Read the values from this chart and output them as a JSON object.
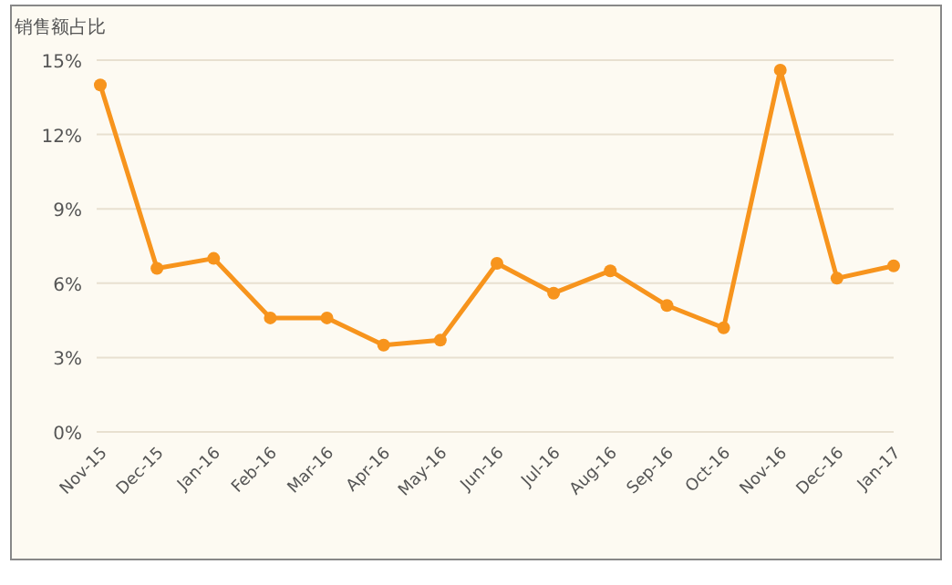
{
  "chart_data": {
    "type": "line",
    "ylabel": "销售额占比",
    "categories": [
      "Nov-15",
      "Dec-15",
      "Jan-16",
      "Feb-16",
      "Mar-16",
      "Apr-16",
      "May-16",
      "Jun-16",
      "Jul-16",
      "Aug-16",
      "Sep-16",
      "Oct-16",
      "Nov-16",
      "Dec-16",
      "Jan-17"
    ],
    "series": [
      {
        "color": "#f7941d",
        "values": [
          14.0,
          6.6,
          7.0,
          4.6,
          4.6,
          3.5,
          3.7,
          6.8,
          5.6,
          6.5,
          5.1,
          4.2,
          14.6,
          6.2,
          6.7
        ]
      }
    ],
    "ylim": [
      0,
      15
    ],
    "yticks": [
      {
        "value": 0,
        "label": "0%"
      },
      {
        "value": 3,
        "label": "3%"
      },
      {
        "value": 6,
        "label": "6%"
      },
      {
        "value": 9,
        "label": "9%"
      },
      {
        "value": 12,
        "label": "12%"
      },
      {
        "value": 15,
        "label": "15%"
      }
    ],
    "grid": "y",
    "marker": "circle",
    "line_style": "solid"
  }
}
